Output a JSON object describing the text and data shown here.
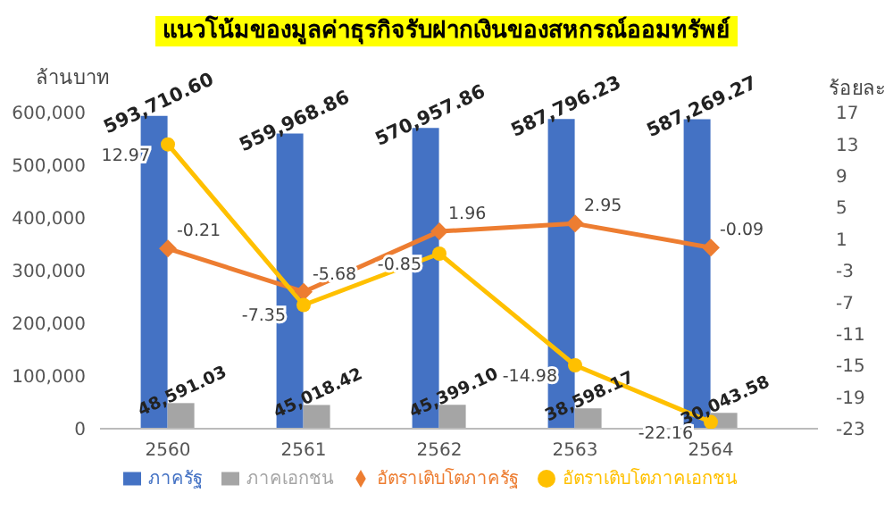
{
  "chart_data": {
    "type": "bar",
    "title": "แนวโน้มของมูลค่าธุรกิจรับฝากเงินของสหกรณ์ออมทรัพย์",
    "ylabel": "ล้านบาท",
    "y2label": "ร้อยละ",
    "categories": [
      "2560",
      "2561",
      "2562",
      "2563",
      "2564"
    ],
    "series": [
      {
        "name": "ภาครัฐ",
        "color": "#4472c4",
        "values": [
          593710.6,
          559968.86,
          570957.86,
          587796.23,
          587269.27
        ],
        "value_labels": [
          "593,710.60",
          "559,968.86",
          "570,957.86",
          "587,796.23",
          "587,269.27"
        ]
      },
      {
        "name": "ภาคเอกชน",
        "color": "#a5a5a5",
        "values": [
          48591.03,
          45018.42,
          45399.1,
          38598.17,
          30043.58
        ],
        "value_labels": [
          "48,591.03",
          "45,018.42",
          "45,399.10",
          "38,598.17",
          "30,043.58"
        ]
      },
      {
        "name": "อัตราเติบโตภาครัฐ",
        "type": "line",
        "axis": "y2",
        "marker": "diamond",
        "color": "#ed7d31",
        "values": [
          -0.21,
          -5.68,
          1.96,
          2.95,
          -0.09
        ],
        "value_labels": [
          "-0.21",
          "-5.68",
          "1.96",
          "2.95",
          "-0.09"
        ]
      },
      {
        "name": "อัตราเติบโตภาคเอกชน",
        "type": "line",
        "axis": "y2",
        "marker": "circle",
        "color": "#ffc000",
        "values": [
          12.97,
          -7.35,
          -0.85,
          -14.98,
          -22.16
        ],
        "value_labels": [
          "12.97",
          "-7.35",
          "-0.85",
          "-14.98",
          "-22.16"
        ]
      }
    ],
    "ylim": [
      0,
      600000
    ],
    "yticks": [
      0,
      {
        "value": 100000,
        "label": "100,000"
      },
      {
        "value": 200000,
        "label": "200,000"
      },
      {
        "value": 300000,
        "label": "300,000"
      },
      {
        "value": 400000,
        "label": "400,000"
      },
      {
        "value": 500000,
        "label": "500,000"
      },
      {
        "value": 600000,
        "label": "600,000"
      }
    ],
    "y2lim": [
      -23,
      17
    ],
    "y2ticks": [
      -23,
      -19,
      -15,
      -11,
      -7,
      -3,
      1,
      5,
      9,
      13,
      17
    ],
    "grid": false,
    "legend": "bottom",
    "data_labels": true
  }
}
